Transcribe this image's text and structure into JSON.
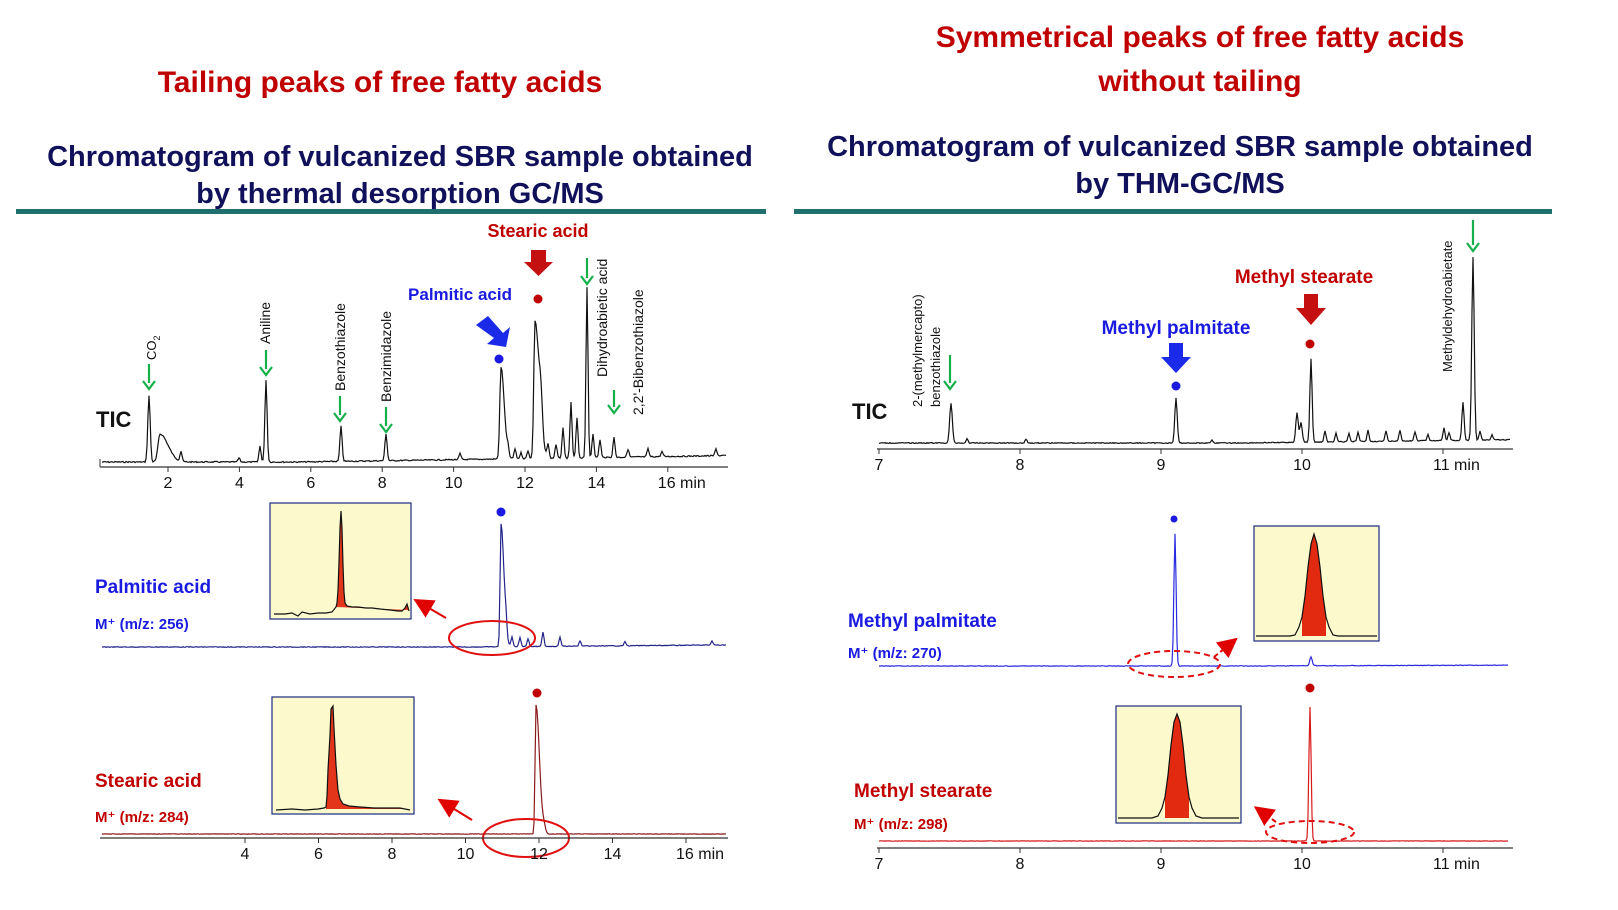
{
  "colors": {
    "title_red": "#c00000",
    "subtitle_navy": "#10115a",
    "rule": "#1f6f6f",
    "blue": "#1a1ae0",
    "darkred": "#b00000",
    "green": "#16b04a",
    "inset_bg": "#fcfacd",
    "highlight": "#ff2a00"
  },
  "left": {
    "heading": "Tailing peaks of free fatty acids",
    "subtitle_line1": "Chromatogram of vulcanized SBR sample obtained",
    "subtitle_line2": "by thermal desorption GC/MS",
    "tic_label": "TIC",
    "compound_labels": [
      "CO",
      "Aniline",
      "Benzothiazole",
      "Benzimidazole",
      "Dihydroabietic acid",
      "2,2'-Bibenzothiazole"
    ],
    "co2_subscript": "2",
    "palmitic_callout": "Palmitic acid",
    "stearic_callout": "Stearic acid",
    "trace1_name": "Palmitic acid",
    "trace1_ion": "M⁺ (m/z: 256)",
    "trace2_name": "Stearic acid",
    "trace2_ion": "M⁺ (m/z: 284)",
    "top_ticks": [
      "2",
      "4",
      "6",
      "8",
      "10",
      "12",
      "14",
      "16 min"
    ],
    "bottom_ticks": [
      "4",
      "6",
      "8",
      "10",
      "12",
      "14",
      "16 min"
    ]
  },
  "right": {
    "heading_line1": "Symmetrical peaks of free fatty acids",
    "heading_line2": "without tailing",
    "subtitle_line1": "Chromatogram of vulcanized SBR sample obtained",
    "subtitle_line2": "by THM-GC/MS",
    "tic_label": "TIC",
    "compound_label_line1": "2-(methylmercapto)",
    "compound_label_line2": "benzothiazole",
    "methyldehydro_label": "Methyldehydroabietate",
    "palmitate_callout": "Methyl palmitate",
    "stearate_callout": "Methyl stearate",
    "trace1_name": "Methyl palmitate",
    "trace1_ion": "M⁺ (m/z: 270)",
    "trace2_name": "Methyl stearate",
    "trace2_ion": "M⁺ (m/z: 298)",
    "top_ticks": [
      "7",
      "8",
      "9",
      "10",
      "11 min"
    ],
    "bottom_ticks": [
      "7",
      "8",
      "9",
      "10",
      "11 min"
    ]
  },
  "chart_data": [
    {
      "type": "line",
      "title": "Chromatogram of vulcanized SBR sample obtained by thermal desorption GC/MS",
      "ylabel": "TIC",
      "xlabel": "min",
      "xlim": [
        0.2,
        17.5
      ],
      "peaks": [
        {
          "name": "CO2",
          "x": 1.5,
          "rel_height": 0.48
        },
        {
          "name": "Aniline",
          "x": 4.7,
          "rel_height": 0.63
        },
        {
          "name": "Benzothiazole",
          "x": 6.8,
          "rel_height": 0.26
        },
        {
          "name": "Benzimidazole",
          "x": 8.1,
          "rel_height": 0.2
        },
        {
          "name": "Palmitic acid",
          "x": 11.3,
          "rel_height": 0.67
        },
        {
          "name": "Stearic acid",
          "x": 12.3,
          "rel_height": 1.0
        },
        {
          "name": "Dihydroabietic acid",
          "x": 13.7,
          "rel_height": 1.02
        },
        {
          "name": "2,2'-Bibenzothiazole",
          "x": 14.5,
          "rel_height": 0.15
        }
      ]
    },
    {
      "type": "line",
      "title": "Palmitic acid",
      "ylabel": "M+ (m/z: 256)",
      "peaks": [
        {
          "name": "Palmitic acid",
          "x": 11.3,
          "rel_height": 1.0
        }
      ]
    },
    {
      "type": "line",
      "title": "Stearic acid",
      "ylabel": "M+ (m/z: 284)",
      "peaks": [
        {
          "name": "Stearic acid",
          "x": 12.0,
          "rel_height": 1.0
        }
      ]
    },
    {
      "type": "line",
      "title": "Chromatogram of vulcanized SBR sample obtained by THM-GC/MS",
      "ylabel": "TIC",
      "xlabel": "min",
      "xlim": [
        7.0,
        11.4
      ],
      "peaks": [
        {
          "name": "2-(methylmercapto)benzothiazole",
          "x": 7.52,
          "rel_height": 0.22
        },
        {
          "name": "Methyl palmitate",
          "x": 9.12,
          "rel_height": 0.24
        },
        {
          "name": "Methyl stearate",
          "x": 10.08,
          "rel_height": 0.45
        },
        {
          "name": "Methyldehydroabietate",
          "x": 11.2,
          "rel_height": 1.0
        }
      ]
    },
    {
      "type": "line",
      "title": "Methyl palmitate",
      "ylabel": "M+ (m/z: 270)",
      "peaks": [
        {
          "name": "Methyl palmitate",
          "x": 9.12,
          "rel_height": 1.0
        }
      ]
    },
    {
      "type": "line",
      "title": "Methyl stearate",
      "ylabel": "M+ (m/z: 298)",
      "peaks": [
        {
          "name": "Methyl stearate",
          "x": 10.08,
          "rel_height": 1.0
        }
      ]
    }
  ]
}
